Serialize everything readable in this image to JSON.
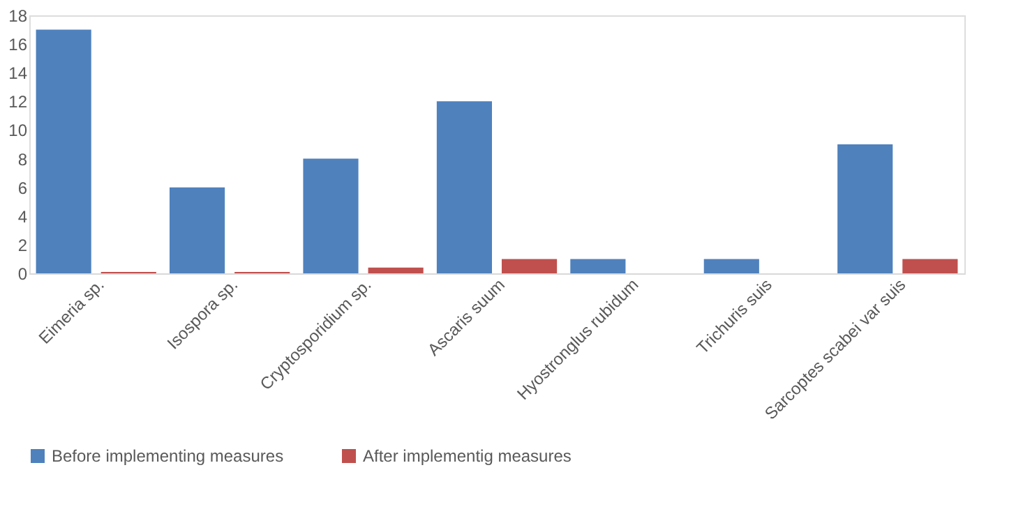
{
  "chart_data": {
    "type": "bar",
    "categories": [
      "Eimeria sp.",
      "Isospora sp.",
      "Cryptosporidium sp.",
      "Ascaris suum",
      "Hyostronglus rubidum",
      "Trichuris suis",
      "Sarcoptes scabei var suis"
    ],
    "series": [
      {
        "name": "Before implementing measures",
        "color": "#4f81bd",
        "values": [
          17,
          6,
          8,
          12,
          1,
          1,
          9
        ]
      },
      {
        "name": "After implementig measures",
        "color": "#c0504d",
        "values": [
          0.1,
          0.1,
          0.4,
          1,
          0,
          0,
          1
        ]
      }
    ],
    "ylim": [
      0,
      18
    ],
    "yticks": [
      0,
      2,
      4,
      6,
      8,
      10,
      12,
      14,
      16,
      18
    ],
    "grid": false,
    "legend": "bottom"
  }
}
